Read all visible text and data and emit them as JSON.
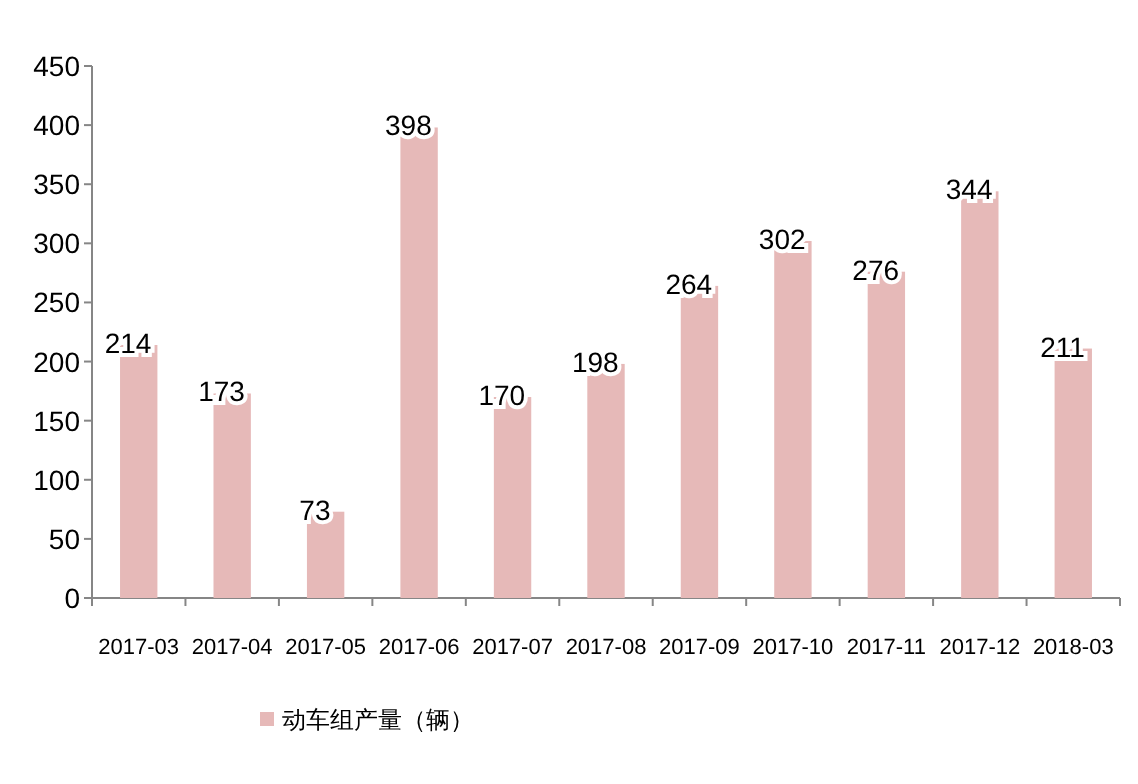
{
  "chart_data": {
    "type": "bar",
    "categories": [
      "2017-03",
      "2017-04",
      "2017-05",
      "2017-06",
      "2017-07",
      "2017-08",
      "2017-09",
      "2017-10",
      "2017-11",
      "2017-12",
      "2018-03"
    ],
    "series": [
      {
        "name": "动车组产量（辆）",
        "color": "#e6b9b8",
        "values": [
          214,
          173,
          73,
          398,
          170,
          198,
          264,
          302,
          276,
          344,
          211
        ]
      }
    ],
    "ylim": [
      0,
      450
    ],
    "yticks": [
      0,
      50,
      100,
      150,
      200,
      250,
      300,
      350,
      400,
      450
    ],
    "data_labels": true,
    "grid": false,
    "legend": "bottom left"
  }
}
